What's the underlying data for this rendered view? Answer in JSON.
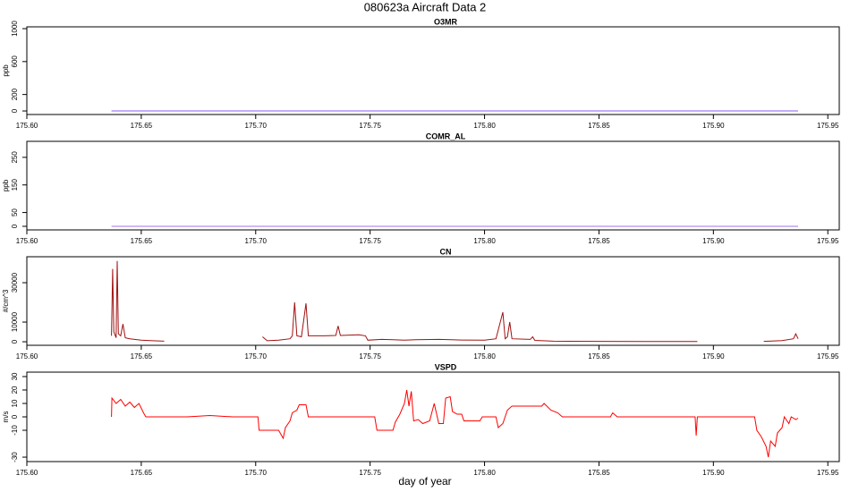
{
  "title": "080623a   Aircraft Data 2",
  "xlabel": "day of year",
  "chart_data": [
    {
      "type": "line",
      "title": "O3MR",
      "ylabel": "ppb",
      "xlim": [
        175.6,
        175.955
      ],
      "ylim": [
        -43,
        1022
      ],
      "xticks": [
        {
          "value": 175.6,
          "label": "175.60"
        },
        175.65,
        {
          "value": 175.7,
          "label": "175.70"
        },
        175.75,
        {
          "value": 175.8,
          "label": "175.80"
        },
        175.85,
        {
          "value": 175.9,
          "label": "175.90"
        },
        175.95
      ],
      "yticks": [
        0,
        200,
        600,
        1000
      ],
      "series": [
        {
          "color": "#8a5cf5",
          "x": [
            175.637,
            175.937
          ],
          "values": [
            0,
            0
          ]
        }
      ]
    },
    {
      "type": "line",
      "title": "COMR_AL",
      "ylabel": "ppb",
      "xlim": [
        175.6,
        175.955
      ],
      "ylim": [
        -13,
        308
      ],
      "xticks": [
        {
          "value": 175.6,
          "label": "175.60"
        },
        175.65,
        {
          "value": 175.7,
          "label": "175.70"
        },
        175.75,
        {
          "value": 175.8,
          "label": "175.80"
        },
        175.85,
        {
          "value": 175.9,
          "label": "175.90"
        },
        175.95
      ],
      "yticks": [
        0,
        50,
        150,
        250
      ],
      "series": [
        {
          "color": "#a070f0",
          "x": [
            175.637,
            175.937
          ],
          "values": [
            0,
            0
          ]
        }
      ]
    },
    {
      "type": "line",
      "title": "CN",
      "ylabel": "#/cm^3",
      "xlim": [
        175.6,
        175.955
      ],
      "ylim": [
        -1800,
        43200
      ],
      "xticks": [
        {
          "value": 175.6,
          "label": "175.60"
        },
        175.65,
        {
          "value": 175.7,
          "label": "175.70"
        },
        175.75,
        {
          "value": 175.8,
          "label": "175.80"
        },
        175.85,
        {
          "value": 175.9,
          "label": "175.90"
        },
        175.95
      ],
      "yticks": [
        0,
        10000,
        30000
      ],
      "series": [
        {
          "color": "#a01010",
          "x": [
            175.637,
            175.6375,
            175.638,
            175.639,
            175.6395,
            175.64,
            175.641,
            175.642,
            175.643,
            175.645,
            175.65,
            175.655,
            175.66,
            175.68,
            175.703,
            175.705,
            175.71,
            175.715,
            175.716,
            175.717,
            175.718,
            175.72,
            175.722,
            175.723,
            175.73,
            175.735,
            175.736,
            175.737,
            175.745,
            175.748,
            175.749,
            175.755,
            175.76,
            175.765,
            175.77,
            175.78,
            175.79,
            175.8,
            175.805,
            175.808,
            175.809,
            175.81,
            175.811,
            175.812,
            175.82,
            175.821,
            175.822,
            175.83,
            175.85,
            175.87,
            175.893,
            175.91,
            175.922,
            175.93,
            175.935,
            175.936,
            175.937
          ],
          "values": [
            3000,
            37000,
            5000,
            2000,
            41000,
            4000,
            3000,
            9000,
            2000,
            1500,
            800,
            500,
            300,
            null,
            2500,
            500,
            800,
            1500,
            3000,
            20000,
            3000,
            2500,
            19500,
            3000,
            3000,
            3200,
            8000,
            3200,
            3500,
            3000,
            800,
            1200,
            1000,
            800,
            1000,
            1200,
            900,
            800,
            1500,
            15000,
            1500,
            2500,
            10000,
            1500,
            1200,
            2500,
            700,
            300,
            200,
            150,
            150,
            null,
            200,
            600,
            1500,
            4000,
            1500
          ]
        }
      ]
    },
    {
      "type": "line",
      "title": "VSPD",
      "ylabel": "m/s",
      "xlim": [
        175.6,
        175.955
      ],
      "ylim": [
        -33.3,
        33.3
      ],
      "xticks": [
        {
          "value": 175.6,
          "label": "175.60"
        },
        175.65,
        {
          "value": 175.7,
          "label": "175.70"
        },
        175.75,
        {
          "value": 175.8,
          "label": "175.80"
        },
        175.85,
        {
          "value": 175.9,
          "label": "175.90"
        },
        175.95
      ],
      "yticks": [
        -30,
        -10,
        0,
        10,
        20,
        30
      ],
      "series": [
        {
          "color": "#ff0000",
          "x": [
            175.637,
            175.6372,
            175.639,
            175.641,
            175.643,
            175.645,
            175.647,
            175.649,
            175.651,
            175.652,
            175.67,
            175.68,
            175.69,
            175.701,
            175.7015,
            175.71,
            175.712,
            175.713,
            175.715,
            175.716,
            175.718,
            175.719,
            175.722,
            175.723,
            175.752,
            175.753,
            175.76,
            175.761,
            175.763,
            175.765,
            175.766,
            175.767,
            175.768,
            175.769,
            175.771,
            175.773,
            175.776,
            175.778,
            175.78,
            175.782,
            175.783,
            175.785,
            175.786,
            175.788,
            175.79,
            175.791,
            175.798,
            175.799,
            175.805,
            175.806,
            175.808,
            175.81,
            175.812,
            175.825,
            175.826,
            175.829,
            175.832,
            175.834,
            175.855,
            175.856,
            175.858,
            175.892,
            175.8925,
            175.893,
            175.918,
            175.919,
            175.921,
            175.923,
            175.924,
            175.925,
            175.927,
            175.928,
            175.93,
            175.931,
            175.933,
            175.934,
            175.936,
            175.937
          ],
          "values": [
            0,
            14,
            10,
            13,
            8,
            11,
            7,
            10,
            3,
            0,
            0,
            1,
            0,
            0,
            -10,
            -10,
            -16,
            -8,
            -3,
            3,
            5,
            9,
            9,
            0,
            0,
            -10,
            -10,
            -4,
            2,
            10,
            20,
            8,
            19,
            -3,
            -2,
            -5,
            -3,
            10,
            -5,
            -5,
            14,
            15,
            4,
            2,
            2,
            -3,
            -3,
            0,
            0,
            -8,
            -5,
            5,
            8,
            8,
            10,
            5,
            3,
            0,
            0,
            3,
            0,
            0,
            -14,
            0,
            0,
            -10,
            -15,
            -22,
            -30,
            -18,
            -22,
            -12,
            -8,
            0,
            -5,
            0,
            -2,
            -1
          ]
        }
      ]
    }
  ]
}
